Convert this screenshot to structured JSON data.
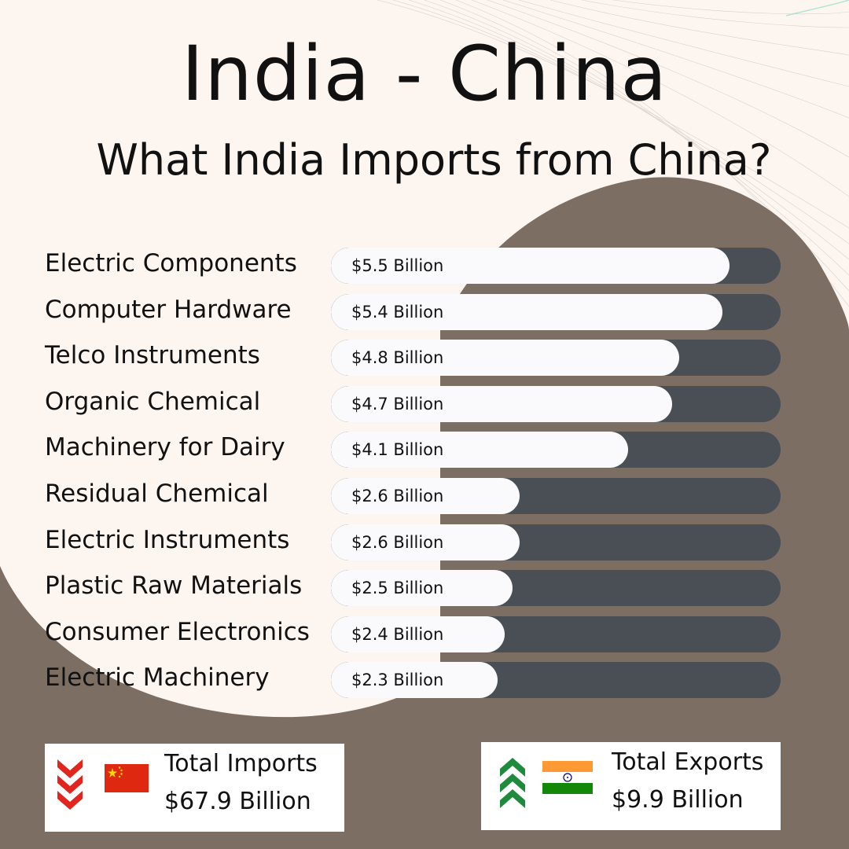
{
  "title": "India - China",
  "subtitle": "What India Imports from China?",
  "colors": {
    "background": "#FDF5F0",
    "blob": "#7D6E64",
    "track": "#4A4F56",
    "fill": "#FAFAFC",
    "import_arrows": "#E0261E",
    "export_arrows": "#1E8A3C"
  },
  "chart_data": {
    "type": "bar",
    "orientation": "horizontal",
    "categories": [
      "Electric Components",
      "Computer Hardware",
      "Telco Instruments",
      "Organic Chemical",
      "Machinery for Dairy",
      "Residual Chemical",
      "Electric Instruments",
      "Plastic Raw Materials",
      "Consumer Electronics",
      "Electric Machinery"
    ],
    "values": [
      5.5,
      5.4,
      4.8,
      4.7,
      4.1,
      2.6,
      2.6,
      2.5,
      2.4,
      2.3
    ],
    "value_labels": [
      "$5.5 Billion",
      "$5.4 Billion",
      "$4.8 Billion",
      "$4.7 Billion",
      "$4.1 Billion",
      "$2.6 Billion",
      "$2.6 Billion",
      "$2.5 Billion",
      "$2.4 Billion",
      "$2.3 Billion"
    ],
    "xlim": [
      0,
      6.2
    ]
  },
  "summary": {
    "imports": {
      "label": "Total Imports",
      "value": "$67.9 Billion",
      "icon": "triple-chevron-down-icon",
      "flag": "china-flag-icon"
    },
    "exports": {
      "label": "Total Exports",
      "value": "$9.9 Billion",
      "icon": "triple-chevron-up-icon",
      "flag": "india-flag-icon"
    }
  }
}
